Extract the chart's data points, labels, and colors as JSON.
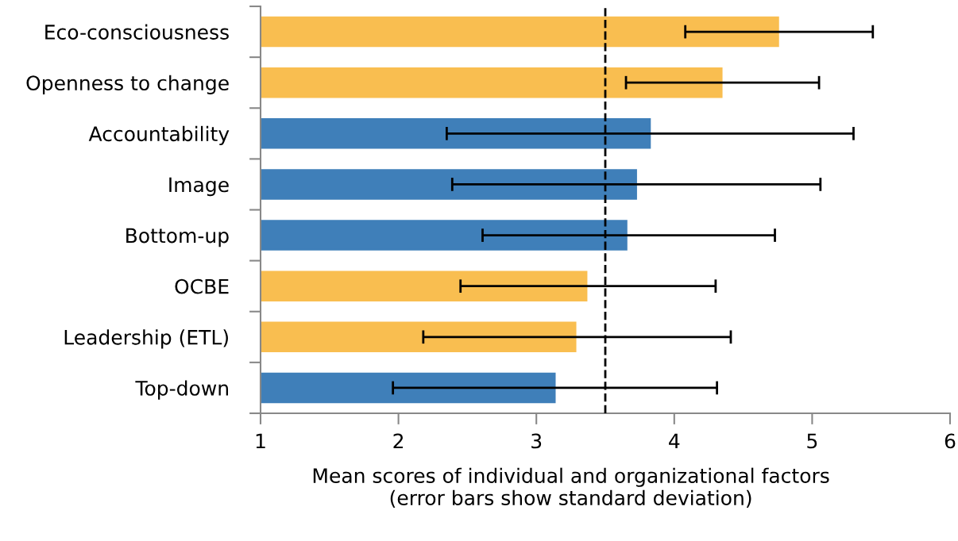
{
  "chart_data": {
    "type": "bar",
    "orientation": "horizontal",
    "xlabel": "Mean scores of individual and organizational factors\n(error bars show standard deviation)",
    "categories": [
      "Eco-consciousness",
      "Openness to change",
      "Accountability",
      "Image",
      "Bottom-up",
      "OCBE",
      "Leadership (ETL)",
      "Top-down"
    ],
    "values": [
      4.76,
      4.35,
      3.83,
      3.73,
      3.66,
      3.37,
      3.29,
      3.14
    ],
    "colors": [
      "#f9be50",
      "#f9be50",
      "#3f7fb9",
      "#3f7fb9",
      "#3f7fb9",
      "#f9be50",
      "#f9be50",
      "#3f7fb9"
    ],
    "errors": [
      [
        4.08,
        5.44
      ],
      [
        3.65,
        5.05
      ],
      [
        2.35,
        5.3
      ],
      [
        2.39,
        5.06
      ],
      [
        2.61,
        4.73
      ],
      [
        2.45,
        4.3
      ],
      [
        2.18,
        4.41
      ],
      [
        1.96,
        4.31
      ]
    ],
    "xlim": [
      1,
      6
    ],
    "xticks": [
      1,
      2,
      3,
      4,
      5,
      6
    ],
    "ref_lines": [
      {
        "axis": "x",
        "value": 3.5,
        "color": "#000000",
        "line_style": "dashed"
      }
    ],
    "grid": false,
    "legend": false
  }
}
